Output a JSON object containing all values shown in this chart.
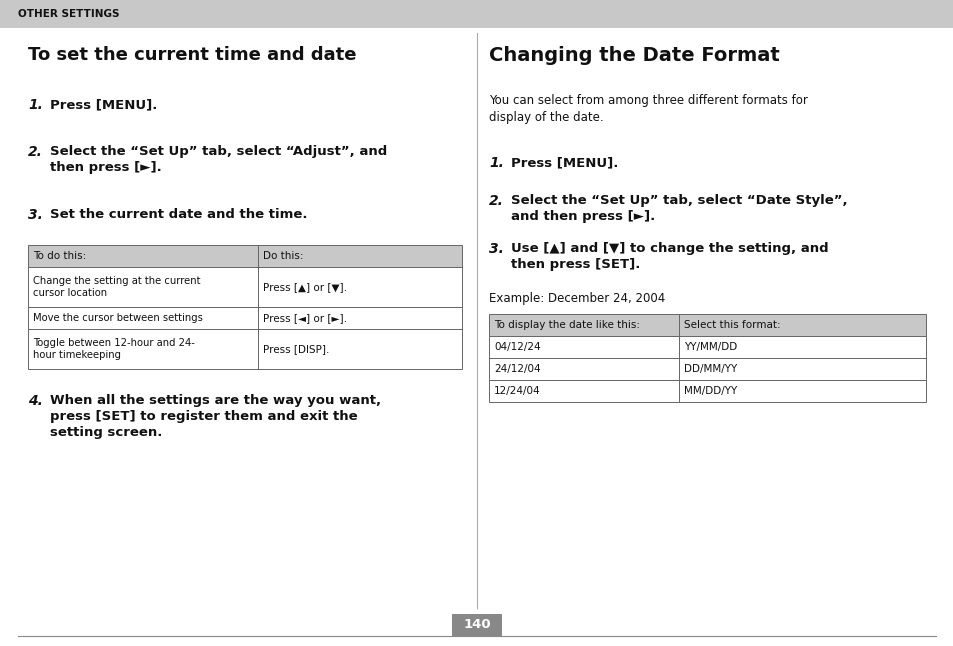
{
  "header_text": "OTHER SETTINGS",
  "header_bg": "#c8c8c8",
  "left_title": "To set the current time and date",
  "right_title": "Changing the Date Format",
  "right_intro": "You can select from among three different formats for\ndisplay of the date.",
  "left_steps": [
    {
      "num": "1.",
      "text": "Press [MENU]."
    },
    {
      "num": "2.",
      "text": "Select the “Set Up” tab, select “Adjust”, and\nthen press [►]."
    },
    {
      "num": "3.",
      "text": "Set the current date and the time."
    }
  ],
  "left_table_headers": [
    "To do this:",
    "Do this:"
  ],
  "left_table_rows": [
    [
      "Change the setting at the current\ncursor location",
      "Press [▲] or [▼]."
    ],
    [
      "Move the cursor between settings",
      "Press [◄] or [►]."
    ],
    [
      "Toggle between 12-hour and 24-\nhour timekeeping",
      "Press [DISP]."
    ]
  ],
  "left_step4": {
    "num": "4.",
    "text": "When all the settings are the way you want,\npress [SET] to register them and exit the\nsetting screen."
  },
  "right_steps": [
    {
      "num": "1.",
      "text": "Press [MENU]."
    },
    {
      "num": "2.",
      "text": "Select the “Set Up” tab, select “Date Style”,\nand then press [►]."
    },
    {
      "num": "3.",
      "text": "Use [▲] and [▼] to change the setting, and\nthen press [SET]."
    }
  ],
  "example_text": "Example: December 24, 2004",
  "right_table_headers": [
    "To display the date like this:",
    "Select this format:"
  ],
  "right_table_rows": [
    [
      "04/12/24",
      "YY/MM/DD"
    ],
    [
      "24/12/04",
      "DD/MM/YY"
    ],
    [
      "12/24/04",
      "MM/DD/YY"
    ]
  ],
  "page_number": "140",
  "page_num_bg": "#888888",
  "bg_color": "#ffffff",
  "divider_color": "#888888",
  "table_header_bg": "#c8c8c8",
  "table_border": "#666666",
  "center_line_color": "#aaaaaa",
  "fig_width": 9.54,
  "fig_height": 6.46,
  "dpi": 100
}
